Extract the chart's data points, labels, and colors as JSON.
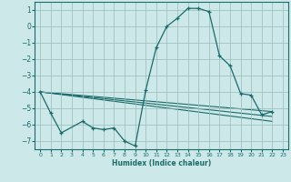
{
  "background_color": "#cce8e8",
  "grid_color": "#99bbbb",
  "line_color": "#1a6b6b",
  "xlabel": "Humidex (Indice chaleur)",
  "ylim": [
    -7.5,
    1.5
  ],
  "xlim": [
    -0.5,
    23.5
  ],
  "yticks": [
    1,
    0,
    -1,
    -2,
    -3,
    -4,
    -5,
    -6,
    -7
  ],
  "xticks": [
    0,
    1,
    2,
    3,
    4,
    5,
    6,
    7,
    8,
    9,
    10,
    11,
    12,
    13,
    14,
    15,
    16,
    17,
    18,
    19,
    20,
    21,
    22,
    23
  ],
  "main_series": {
    "x": [
      0,
      1,
      2,
      4,
      5,
      6,
      7,
      8,
      9,
      10,
      11,
      12,
      13,
      14,
      15,
      16,
      17,
      18,
      19,
      20,
      21,
      22
    ],
    "y": [
      -4.0,
      -5.3,
      -6.5,
      -5.8,
      -6.2,
      -6.3,
      -6.2,
      -7.0,
      -7.3,
      -3.9,
      -1.3,
      0.0,
      0.5,
      1.1,
      1.1,
      0.9,
      -1.8,
      -2.4,
      -4.1,
      -4.2,
      -5.4,
      -5.2
    ]
  },
  "trend_lines": [
    {
      "x": [
        0,
        22
      ],
      "y": [
        -4.0,
        -5.2
      ]
    },
    {
      "x": [
        0,
        22
      ],
      "y": [
        -4.0,
        -5.5
      ]
    },
    {
      "x": [
        0,
        22
      ],
      "y": [
        -4.0,
        -5.8
      ]
    }
  ]
}
